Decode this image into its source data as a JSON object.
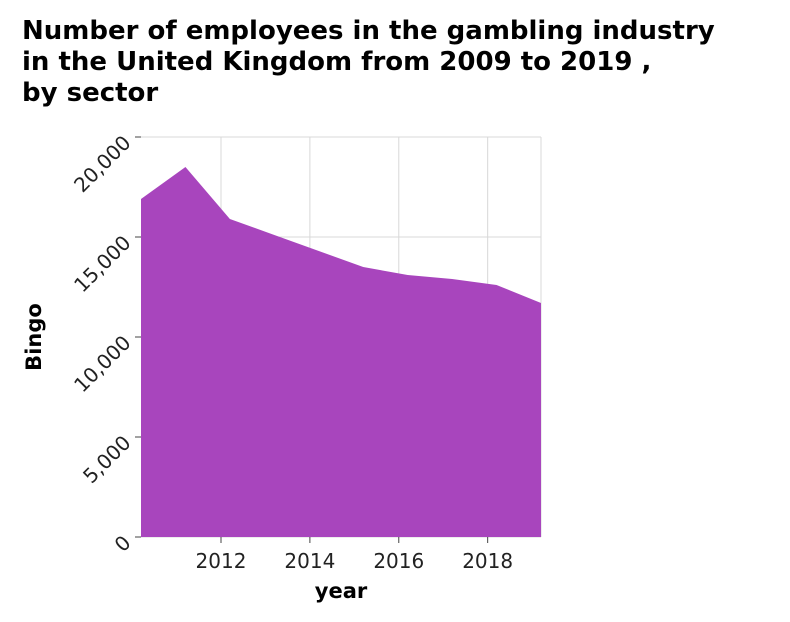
{
  "chart_data": {
    "type": "area",
    "title_lines": [
      "Number of employees in the gambling industry",
      "in the United Kingdom from 2009 to 2019 ,",
      "by sector"
    ],
    "xlabel": "year",
    "ylabel": "Bingo",
    "x": [
      2010.2,
      2011.2,
      2012.2,
      2013.2,
      2014.2,
      2015.2,
      2016.2,
      2017.2,
      2018.2,
      2019.2
    ],
    "values": [
      16900,
      18500,
      15900,
      15100,
      14300,
      13500,
      13100,
      12900,
      12600,
      11700
    ],
    "xlim": [
      2010.2,
      2019.2
    ],
    "ylim": [
      0,
      20000
    ],
    "x_ticks": [
      2012,
      2014,
      2016,
      2018
    ],
    "y_ticks": [
      0,
      5000,
      10000,
      15000,
      20000
    ],
    "x_tick_labels": [
      "2012",
      "2014",
      "2016",
      "2018"
    ],
    "y_tick_labels": [
      "0",
      "5,000",
      "10,000",
      "15,000",
      "20,000"
    ],
    "grid": true,
    "legend": "none",
    "fill_color": "#a845bd",
    "grid_color": "#d8d8d8"
  }
}
